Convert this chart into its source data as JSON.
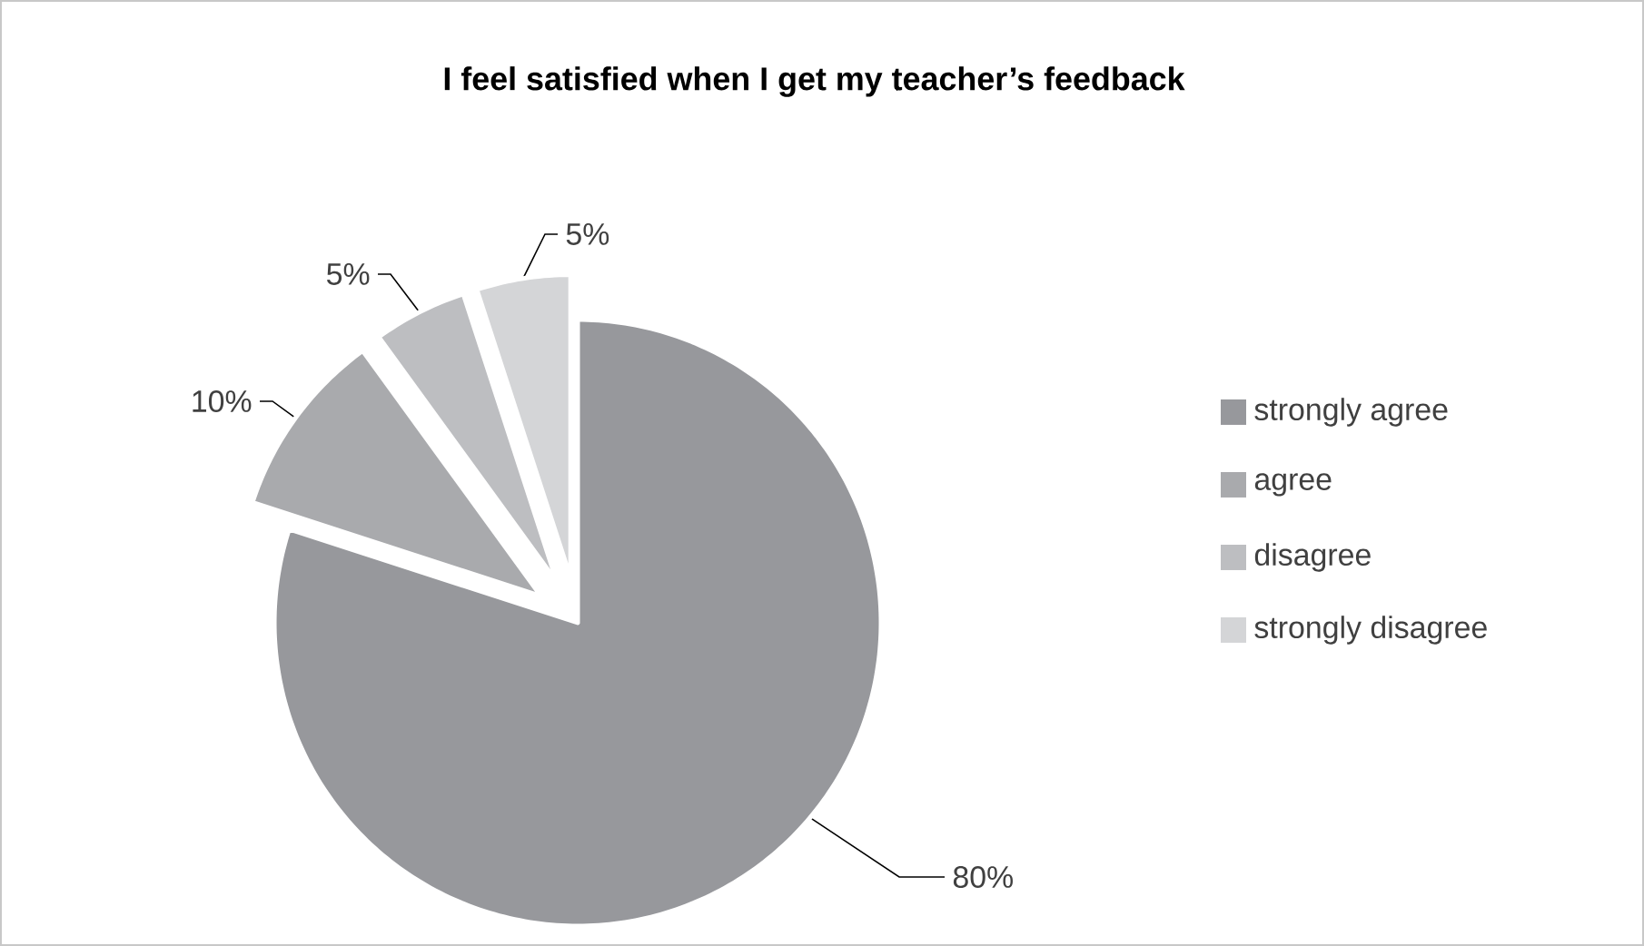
{
  "chart_data": {
    "type": "pie",
    "title": "I feel satisfied when I get my teacher’s feedback",
    "categories": [
      "strongly agree",
      "agree",
      "disagree",
      "strongly disagree"
    ],
    "values": [
      80,
      10,
      5,
      5
    ],
    "value_labels": [
      "80%",
      "10%",
      "5%",
      "5%"
    ],
    "colors": [
      "#97989c",
      "#a9aaad",
      "#bdbec1",
      "#d4d5d7"
    ],
    "legend": "right"
  }
}
